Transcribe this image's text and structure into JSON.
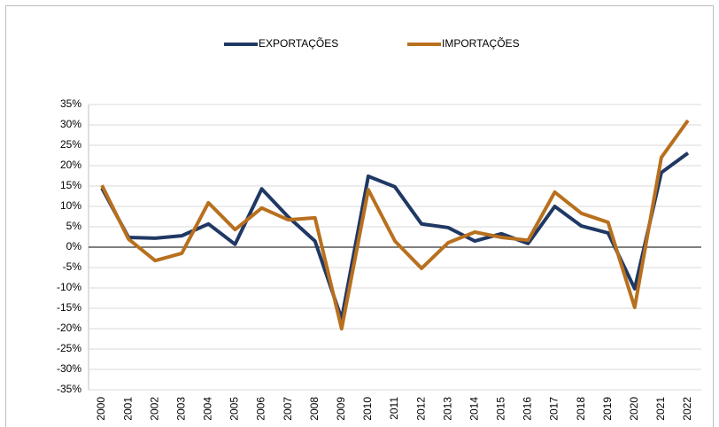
{
  "chart_data": {
    "type": "line",
    "categories": [
      "2000",
      "2001",
      "2002",
      "2003",
      "2004",
      "2005",
      "2006",
      "2007",
      "2008",
      "2009",
      "2010",
      "2011",
      "2012",
      "2013",
      "2014",
      "2015",
      "2016",
      "2017",
      "2018",
      "2019",
      "2020",
      "2021",
      "2022"
    ],
    "series": [
      {
        "name": "EXPORTAÇÕES",
        "color": "#203864",
        "values": [
          14.5,
          2.4,
          2.2,
          2.8,
          5.7,
          0.7,
          14.3,
          7.4,
          1.5,
          -17.6,
          17.4,
          14.8,
          5.7,
          4.8,
          1.5,
          3.3,
          0.9,
          10,
          5.2,
          3.5,
          -10.2,
          18.3,
          23.1
        ]
      },
      {
        "name": "IMPORTAÇÕES",
        "color": "#b8701e",
        "values": [
          15.2,
          2,
          -3.3,
          -1.5,
          10.9,
          4.3,
          9.6,
          6.7,
          7.2,
          -20,
          14.1,
          1.5,
          -5.2,
          1.1,
          3.7,
          2.4,
          1.7,
          13.5,
          8.3,
          6.1,
          -14.8,
          22,
          31.1
        ]
      }
    ],
    "ylim": [
      -35,
      35
    ],
    "yticks": [
      {
        "value": 35,
        "label": "35%"
      },
      {
        "value": 30,
        "label": "30%"
      },
      {
        "value": 25,
        "label": "25%"
      },
      {
        "value": 20,
        "label": "20%"
      },
      {
        "value": 15,
        "label": "15%"
      },
      {
        "value": 10,
        "label": "10%"
      },
      {
        "value": 5,
        "label": "5%"
      },
      {
        "value": 0,
        "label": "0%"
      },
      {
        "value": -5,
        "label": "-5%"
      },
      {
        "value": -10,
        "label": "-10%"
      },
      {
        "value": -15,
        "label": "-15%"
      },
      {
        "value": -20,
        "label": "-20%"
      },
      {
        "value": -25,
        "label": "-25%"
      },
      {
        "value": -30,
        "label": "-30%"
      },
      {
        "value": -35,
        "label": "-35%"
      }
    ],
    "grid": true,
    "legend": "top"
  }
}
